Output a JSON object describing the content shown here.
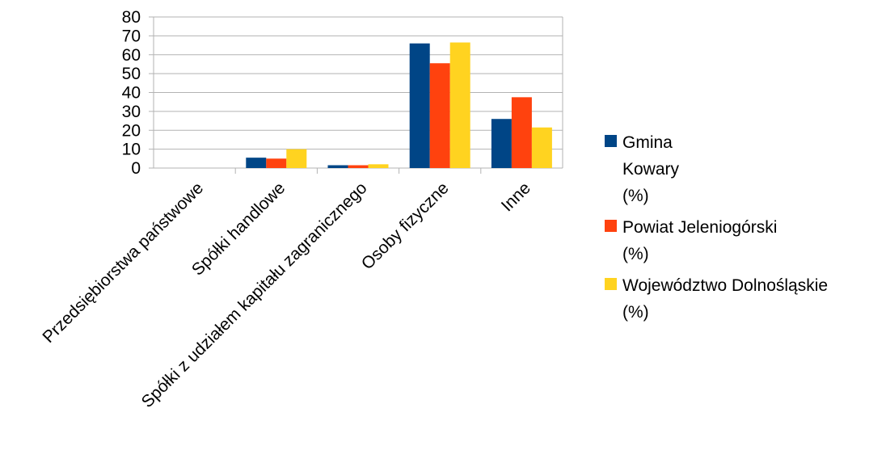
{
  "chart_data": {
    "type": "bar",
    "categories": [
      "Przedsiębiorstwa państwowe",
      "Spółki handlowe",
      "Spółki z udziałem kapitału zagranicznego",
      "Osoby fizyczne",
      "Inne"
    ],
    "series": [
      {
        "name": "Gmina Kowary (%)",
        "color": "#004586",
        "values": [
          0,
          5.5,
          1.5,
          66,
          26
        ]
      },
      {
        "name": "Powiat Jeleniogórski (%)",
        "color": "#ff420e",
        "values": [
          0,
          5,
          1.5,
          55.5,
          37.5
        ]
      },
      {
        "name": "Województwo Dolnośląskie (%)",
        "color": "#ffd320",
        "values": [
          0,
          10,
          2,
          66.5,
          21.5
        ]
      }
    ],
    "yticks": [
      "0",
      "10",
      "20",
      "30",
      "40",
      "50",
      "60",
      "70",
      "80"
    ],
    "ylim": [
      0,
      80
    ],
    "grid": true,
    "legend_position": "right"
  },
  "legend": {
    "items": [
      {
        "lines": [
          "Gmina",
          "Kowary",
          "(%)"
        ],
        "color": "#004586"
      },
      {
        "lines": [
          "Powiat Jeleniogórski",
          "(%)"
        ],
        "color": "#ff420e"
      },
      {
        "lines": [
          "Województwo Dolnośląskie",
          "(%)"
        ],
        "color": "#ffd320"
      }
    ]
  }
}
